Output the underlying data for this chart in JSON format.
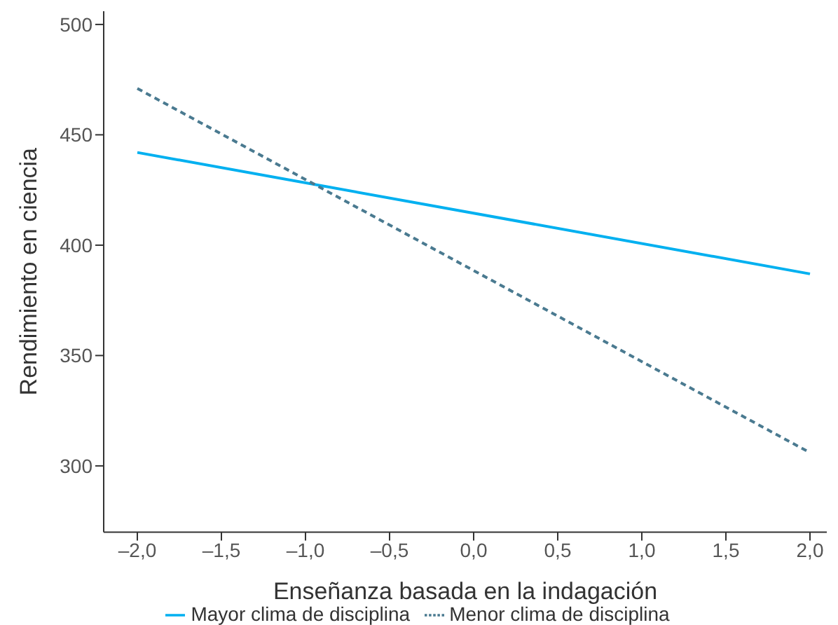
{
  "chart_data": {
    "type": "line",
    "xlabel": "Enseñanza basada en la indagación",
    "ylabel": "Rendimiento en ciencia",
    "x": [
      -2,
      2
    ],
    "series": [
      {
        "name": "Mayor clima de disciplina",
        "color": "#00b0f0",
        "values": [
          442,
          387
        ],
        "line_style": "solid"
      },
      {
        "name": "Menor clima de disciplina",
        "color": "#4a7a90",
        "values": [
          471,
          306
        ],
        "line_style": "dashed"
      }
    ],
    "xlim": [
      -2.2,
      2.1
    ],
    "xticks": [
      {
        "value": -2,
        "label": "–2,0"
      },
      {
        "value": -1.5,
        "label": "–1,5"
      },
      {
        "value": -1,
        "label": "–1,0"
      },
      {
        "value": -0.5,
        "label": "–0,5"
      },
      {
        "value": 0,
        "label": "0,0"
      },
      {
        "value": 0.5,
        "label": "0,5"
      },
      {
        "value": 1,
        "label": "1,0"
      },
      {
        "value": 1.5,
        "label": "1,5"
      },
      {
        "value": 2,
        "label": "2,0"
      }
    ],
    "ylim": [
      270,
      506
    ],
    "yticks": [
      300,
      350,
      400,
      450,
      500
    ],
    "legend": "bottom",
    "grid": false,
    "marker": "none"
  }
}
